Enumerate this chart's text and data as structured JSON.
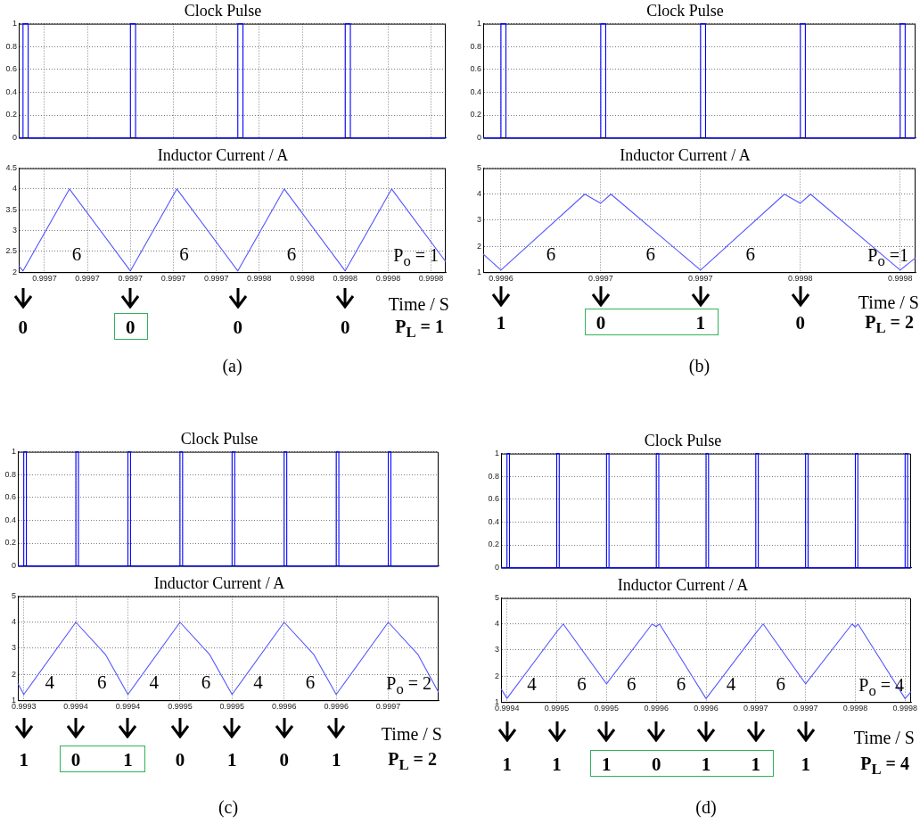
{
  "chart_data": [
    {
      "type": "line",
      "title": "Clock Pulse",
      "tick_labels": "y",
      "grid": true,
      "xlim": [
        0.999694,
        0.9997934
      ],
      "ylim": [
        0,
        1
      ],
      "yticks": [
        0,
        0.2,
        0.4,
        0.6,
        0.8,
        1
      ],
      "xticks": [
        0.9997,
        0.99971,
        0.99972,
        0.99973,
        0.99974,
        0.99975,
        0.99976,
        0.99977,
        0.99978,
        0.99979
      ],
      "series": [
        {
          "color": "#0000ff",
          "x": [
            0.999694,
            0.999695,
            0.999695,
            0.9996962,
            0.9996962,
            0.99972,
            0.99972,
            0.9997212,
            0.9997212,
            0.999745,
            0.999745,
            0.9997462,
            0.9997462,
            0.99977,
            0.99977,
            0.9997712,
            0.9997712,
            0.9997934
          ],
          "values": [
            0,
            0,
            1,
            1,
            0,
            0,
            1,
            1,
            0,
            0,
            1,
            1,
            0,
            0,
            1,
            1,
            0,
            0
          ]
        }
      ]
    },
    {
      "type": "line",
      "title": "Inductor Current / A",
      "xlabel": "Time / S",
      "grid": true,
      "xlim": [
        0.999694,
        0.9997934
      ],
      "ylim": [
        2,
        4.5
      ],
      "yticks": [
        2,
        2.5,
        3,
        3.5,
        4,
        4.5
      ],
      "xticks": [
        0.9997,
        {
          "value": 0.99971,
          "label": "0.9997"
        },
        {
          "value": 0.99972,
          "label": "0.9997"
        },
        {
          "value": 0.99973,
          "label": "0.9997"
        },
        {
          "value": 0.99974,
          "label": "0.9997"
        },
        {
          "value": 0.99975,
          "label": "0.9998"
        },
        {
          "value": 0.99976,
          "label": "0.9998"
        },
        {
          "value": 0.99977,
          "label": "0.9998"
        },
        {
          "value": 0.99978,
          "label": "0.9998"
        },
        {
          "value": 0.99979,
          "label": "0.9998"
        }
      ],
      "series": [
        {
          "color": "#5555ff",
          "x": [
            0.999694,
            0.999695,
            0.9997058,
            0.99972,
            0.9997308,
            0.999745,
            0.9997558,
            0.99977,
            0.9997808,
            0.9997934
          ],
          "values": [
            2.15,
            2.03,
            4,
            2.03,
            4,
            2.03,
            4,
            2.03,
            4,
            2.25
          ]
        }
      ],
      "annotations": [
        "6",
        "6",
        "6",
        "P$_{o}$ = 1",
        {
          "text": "0",
          "x": 0.999695
        },
        {
          "text": "0",
          "x": 0.99972
        },
        {
          "text": "0",
          "x": 0.999745
        },
        {
          "text": "0",
          "x": 0.99977
        },
        "P$_{L}$ = 1",
        "(a)"
      ]
    },
    {
      "type": "line",
      "title": "Clock Pulse",
      "tick_labels": "y",
      "grid": true,
      "xlim": [
        0.9995911,
        0.9998077
      ],
      "ylim": [
        0,
        1
      ],
      "yticks": [
        0,
        0.2,
        0.4,
        0.6,
        0.8,
        1
      ],
      "xticks": [
        0.9996,
        0.99965,
        0.9997,
        0.99975,
        0.9998
      ],
      "series": [
        {
          "color": "#0000ff",
          "x": [
            0.9995911,
            0.9996,
            0.9996,
            0.9996025,
            0.9996025,
            0.99965,
            0.99965,
            0.9996525,
            0.9996525,
            0.9997,
            0.9997,
            0.9997025,
            0.9997025,
            0.99975,
            0.99975,
            0.9997525,
            0.9997525,
            0.9998,
            0.9998,
            0.9998025,
            0.9998025,
            0.9998077
          ],
          "values": [
            0,
            0,
            1,
            1,
            0,
            0,
            1,
            1,
            0,
            0,
            1,
            1,
            0,
            0,
            1,
            1,
            0,
            0,
            1,
            1,
            0,
            0
          ]
        }
      ]
    },
    {
      "type": "line",
      "title": "Inductor Current / A",
      "xlabel": "Time / S",
      "grid": true,
      "xlim": [
        0.9995911,
        0.9998077
      ],
      "ylim": [
        1,
        5
      ],
      "yticks": [
        1,
        2,
        3,
        4,
        5
      ],
      "xticks": [
        0.9996,
        {
          "value": 0.99965,
          "label": "0.9997"
        },
        0.9997,
        {
          "value": 0.99975,
          "label": "0.9998"
        },
        0.9998
      ],
      "series": [
        {
          "color": "#5555ff",
          "x": [
            0.9995911,
            0.9996,
            0.999642,
            0.99965,
            0.9996551,
            0.9997,
            0.999742,
            0.99975,
            0.9997551,
            0.9998,
            0.9998077
          ],
          "values": [
            1.7,
            1.08,
            4,
            3.65,
            4,
            1.08,
            4,
            3.65,
            4,
            1.08,
            1.55
          ]
        }
      ],
      "annotations": [
        "6",
        "6",
        "6",
        "P$_{o}$ =1",
        {
          "text": "1",
          "x": 0.9996
        },
        {
          "text": "0",
          "x": 0.99965
        },
        {
          "text": "1",
          "x": 0.9997
        },
        {
          "text": "0",
          "x": 0.99975
        },
        "P$_{L}$ = 2",
        "(b)"
      ]
    },
    {
      "type": "line",
      "title": "Clock Pulse",
      "tick_labels": "y",
      "grid": true,
      "xlim": [
        0.9992943,
        0.9996983
      ],
      "ylim": [
        0,
        1
      ],
      "yticks": [
        0,
        0.2,
        0.4,
        0.6,
        0.8,
        1
      ],
      "xticks": [
        0.9993,
        0.99935,
        0.9994,
        0.99945,
        0.9995,
        0.99955,
        0.9996,
        0.99965
      ],
      "series": [
        {
          "color": "#0000ff",
          "x": [
            0.9992943,
            0.9993,
            0.9993,
            0.9993025,
            0.9993025,
            0.99935,
            0.99935,
            0.9993525,
            0.9993525,
            0.9994,
            0.9994,
            0.9994025,
            0.9994025,
            0.99945,
            0.99945,
            0.9994525,
            0.9994525,
            0.9995,
            0.9995,
            0.9995025,
            0.9995025,
            0.99955,
            0.99955,
            0.9995525,
            0.9995525,
            0.9996,
            0.9996,
            0.9996025,
            0.9996025,
            0.99965,
            0.99965,
            0.9996525,
            0.9996525,
            0.9996983
          ],
          "values": [
            0,
            0,
            1,
            1,
            0,
            0,
            1,
            1,
            0,
            0,
            1,
            1,
            0,
            0,
            1,
            1,
            0,
            0,
            1,
            1,
            0,
            0,
            1,
            1,
            0,
            0,
            1,
            1,
            0,
            0,
            1,
            1,
            0,
            0
          ]
        }
      ]
    },
    {
      "type": "line",
      "title": "Inductor Current / A",
      "xlabel": "Time / S",
      "grid": true,
      "xlim": [
        0.9992943,
        0.9996983
      ],
      "ylim": [
        1,
        5
      ],
      "yticks": [
        1,
        2,
        3,
        4,
        5
      ],
      "xticks": [
        0.9993,
        {
          "value": 0.99935,
          "label": "0.9994"
        },
        0.9994,
        {
          "value": 0.99945,
          "label": "0.9995"
        },
        0.9995,
        {
          "value": 0.99955,
          "label": "0.9996"
        },
        0.9996,
        {
          "value": 0.99965,
          "label": "0.9997"
        }
      ],
      "series": [
        {
          "color": "#5555ff",
          "x": [
            0.9992943,
            0.9993,
            0.99935,
            0.9993786,
            0.9994,
            0.99945,
            0.9994786,
            0.9995,
            0.99955,
            0.9995786,
            0.9996,
            0.99965,
            0.9996786,
            0.9996983
          ],
          "values": [
            1.65,
            1.22,
            4,
            2.75,
            1.22,
            4,
            2.75,
            1.22,
            4,
            2.75,
            1.22,
            4,
            2.75,
            1.3
          ]
        }
      ],
      "annotations": [
        "4",
        "6",
        "4",
        "6",
        "4",
        "6",
        "P$_{o}$ = 2",
        {
          "text": "1",
          "x": 0.9993
        },
        {
          "text": "0",
          "x": 0.99935
        },
        {
          "text": "1",
          "x": 0.9994
        },
        {
          "text": "0",
          "x": 0.99945
        },
        {
          "text": "1",
          "x": 0.9995
        },
        {
          "text": "0",
          "x": 0.99955
        },
        {
          "text": "1",
          "x": 0.9996
        },
        "P$_{L}$ = 2",
        "(c)"
      ]
    },
    {
      "type": "line",
      "title": "Clock Pulse",
      "tick_labels": "y",
      "grid": true,
      "xlim": [
        0.999394,
        0.999806
      ],
      "ylim": [
        0,
        1
      ],
      "yticks": [
        0,
        0.2,
        0.4,
        0.6,
        0.8,
        1
      ],
      "xticks": [
        0.9994,
        0.99945,
        0.9995,
        0.99955,
        0.9996,
        0.99965,
        0.9997,
        0.99975,
        0.9998
      ],
      "series": [
        {
          "color": "#0000ff",
          "x": [
            0.999394,
            0.9994,
            0.9994,
            0.9994025,
            0.9994025,
            0.99945,
            0.99945,
            0.9994525,
            0.9994525,
            0.9995,
            0.9995,
            0.9995025,
            0.9995025,
            0.99955,
            0.99955,
            0.9995525,
            0.9995525,
            0.9996,
            0.9996,
            0.9996025,
            0.9996025,
            0.99965,
            0.99965,
            0.9996525,
            0.9996525,
            0.9997,
            0.9997,
            0.9997025,
            0.9997025,
            0.99975,
            0.99975,
            0.9997525,
            0.9997525,
            0.9998,
            0.9998,
            0.9998025,
            0.9998025,
            0.999806
          ],
          "values": [
            0,
            0,
            1,
            1,
            0,
            0,
            1,
            1,
            0,
            0,
            1,
            1,
            0,
            0,
            1,
            1,
            0,
            0,
            1,
            1,
            0,
            0,
            1,
            1,
            0,
            0,
            1,
            1,
            0,
            0,
            1,
            1,
            0,
            0,
            1,
            1,
            0,
            0
          ]
        }
      ]
    },
    {
      "type": "line",
      "title": "Inductor Current / A",
      "xlabel": "Time / S",
      "grid": true,
      "xlim": [
        0.999394,
        0.999806
      ],
      "ylim": [
        1,
        5
      ],
      "yticks": [
        1,
        2,
        3,
        4,
        5
      ],
      "xticks": [
        0.9994,
        {
          "value": 0.99945,
          "label": "0.9995"
        },
        0.9995,
        {
          "value": 0.99955,
          "label": "0.9996"
        },
        0.9996,
        {
          "value": 0.99965,
          "label": "0.9997"
        },
        0.9997,
        {
          "value": 0.99975,
          "label": "0.9998"
        },
        0.9998
      ],
      "series": [
        {
          "color": "#5555ff",
          "x": [
            0.999394,
            0.9994,
            0.99945,
            0.9994565,
            0.9995,
            0.9995458,
            0.99955,
            0.9995533,
            0.9996,
            0.99965,
            0.9996574,
            0.9997,
            0.9997467,
            0.99975,
            0.9997527,
            0.9998,
            0.999806
          ],
          "values": [
            1.51,
            1.14,
            3.7,
            4,
            1.7,
            4,
            3.9,
            4,
            1.13,
            3.65,
            4,
            1.7,
            4,
            3.88,
            4,
            1.13,
            1.4
          ]
        }
      ],
      "annotations": [
        "4",
        "6",
        "6",
        "6",
        "4",
        "6",
        "P$_{o}$ = 4",
        {
          "text": "1",
          "x": 0.9994
        },
        {
          "text": "1",
          "x": 0.99945
        },
        {
          "text": "1",
          "x": 0.9995
        },
        {
          "text": "0",
          "x": 0.99955
        },
        {
          "text": "1",
          "x": 0.9996
        },
        {
          "text": "1",
          "x": 0.99965
        },
        {
          "text": "1",
          "x": 0.9997
        },
        "P$_{L}$ = 4",
        "(d)"
      ]
    }
  ]
}
